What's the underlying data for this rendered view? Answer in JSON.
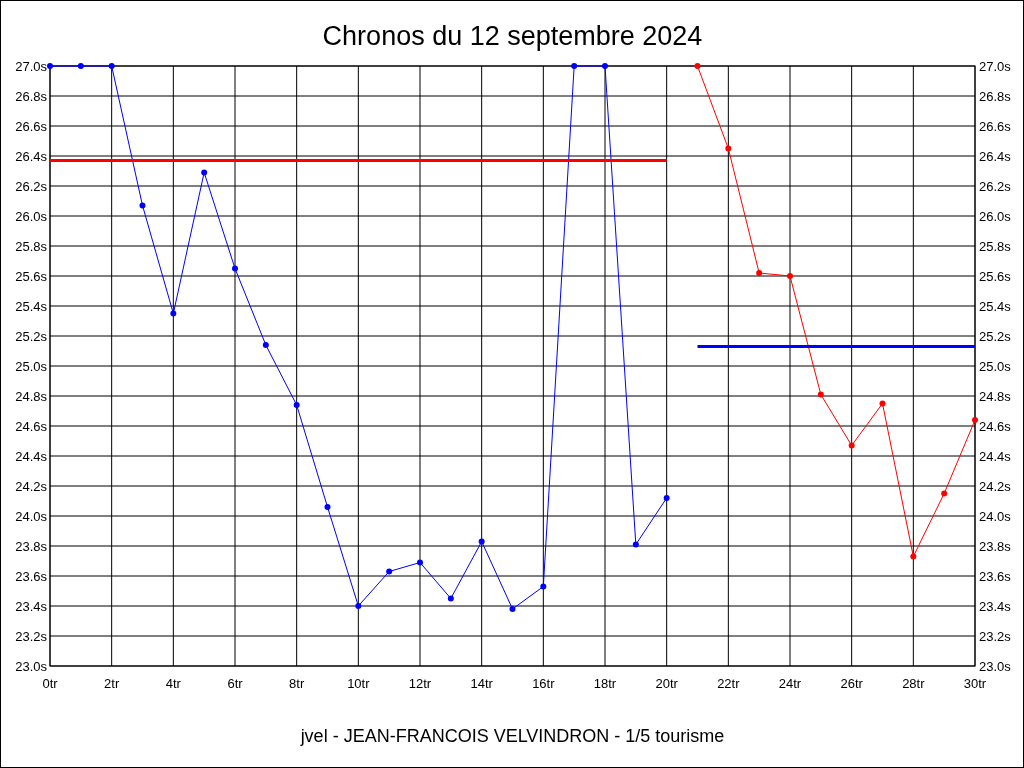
{
  "chart_data": {
    "type": "line",
    "title": "Chronos du 12 septembre 2024",
    "annotations": [
      "jvel - JEAN-FRANCOIS VELVINDRON - 1/5 tourisme"
    ],
    "xlim": [
      0,
      30
    ],
    "xticks": [
      {
        "value": 0,
        "label": "0tr"
      },
      {
        "value": 2,
        "label": "2tr"
      },
      {
        "value": 4,
        "label": "4tr"
      },
      {
        "value": 6,
        "label": "6tr"
      },
      {
        "value": 8,
        "label": "8tr"
      },
      {
        "value": 10,
        "label": "10tr"
      },
      {
        "value": 12,
        "label": "12tr"
      },
      {
        "value": 14,
        "label": "14tr"
      },
      {
        "value": 16,
        "label": "16tr"
      },
      {
        "value": 18,
        "label": "18tr"
      },
      {
        "value": 20,
        "label": "20tr"
      },
      {
        "value": 22,
        "label": "22tr"
      },
      {
        "value": 24,
        "label": "24tr"
      },
      {
        "value": 26,
        "label": "26tr"
      },
      {
        "value": 28,
        "label": "28tr"
      },
      {
        "value": 30,
        "label": "30tr"
      }
    ],
    "ylim": [
      23,
      27
    ],
    "yticks": [
      {
        "value": 23,
        "label": "23.0s"
      },
      {
        "value": 23.2,
        "label": "23.2s"
      },
      {
        "value": 23.4,
        "label": "23.4s"
      },
      {
        "value": 23.6,
        "label": "23.6s"
      },
      {
        "value": 23.8,
        "label": "23.8s"
      },
      {
        "value": 24,
        "label": "24.0s"
      },
      {
        "value": 24.2,
        "label": "24.2s"
      },
      {
        "value": 24.4,
        "label": "24.4s"
      },
      {
        "value": 24.6,
        "label": "24.6s"
      },
      {
        "value": 24.8,
        "label": "24.8s"
      },
      {
        "value": 25,
        "label": "25.0s"
      },
      {
        "value": 25.2,
        "label": "25.2s"
      },
      {
        "value": 25.4,
        "label": "25.4s"
      },
      {
        "value": 25.6,
        "label": "25.6s"
      },
      {
        "value": 25.8,
        "label": "25.8s"
      },
      {
        "value": 26,
        "label": "26.0s"
      },
      {
        "value": 26.2,
        "label": "26.2s"
      },
      {
        "value": 26.4,
        "label": "26.4s"
      },
      {
        "value": 26.6,
        "label": "26.6s"
      },
      {
        "value": 26.8,
        "label": "26.8s"
      },
      {
        "value": 27,
        "label": "27.0s"
      }
    ],
    "y2lim": [
      23,
      27
    ],
    "y2ticks": [
      {
        "value": 23,
        "label": "23.0s"
      },
      {
        "value": 23.2,
        "label": "23.2s"
      },
      {
        "value": 23.4,
        "label": "23.4s"
      },
      {
        "value": 23.6,
        "label": "23.6s"
      },
      {
        "value": 23.8,
        "label": "23.8s"
      },
      {
        "value": 24,
        "label": "24.0s"
      },
      {
        "value": 24.2,
        "label": "24.2s"
      },
      {
        "value": 24.4,
        "label": "24.4s"
      },
      {
        "value": 24.6,
        "label": "24.6s"
      },
      {
        "value": 24.8,
        "label": "24.8s"
      },
      {
        "value": 25,
        "label": "25.0s"
      },
      {
        "value": 25.2,
        "label": "25.2s"
      },
      {
        "value": 25.4,
        "label": "25.4s"
      },
      {
        "value": 25.6,
        "label": "25.6s"
      },
      {
        "value": 25.8,
        "label": "25.8s"
      },
      {
        "value": 26,
        "label": "26.0s"
      },
      {
        "value": 26.2,
        "label": "26.2s"
      },
      {
        "value": 26.4,
        "label": "26.4s"
      },
      {
        "value": 26.6,
        "label": "26.6s"
      },
      {
        "value": 26.8,
        "label": "26.8s"
      },
      {
        "value": 27,
        "label": "27.0s"
      }
    ],
    "grid": true,
    "marker": "circle",
    "line_style": "solid",
    "series": [
      {
        "color": "#0000ff",
        "x": [
          0,
          1,
          2,
          3,
          4,
          5,
          6,
          7,
          8,
          9,
          10,
          11,
          12,
          13,
          14,
          15,
          16,
          17,
          18,
          19,
          20
        ],
        "values": [
          27.0,
          27.0,
          27.0,
          26.07,
          25.35,
          26.29,
          25.65,
          25.14,
          24.74,
          24.06,
          23.4,
          23.63,
          23.69,
          23.45,
          23.83,
          23.38,
          23.53,
          27.0,
          27.0,
          23.81,
          24.12
        ]
      },
      {
        "color": "#ff0000",
        "x": [
          21,
          22,
          23,
          24,
          25,
          26,
          27,
          28,
          29,
          30
        ],
        "values": [
          27.0,
          26.45,
          25.62,
          25.6,
          24.81,
          24.47,
          24.75,
          23.73,
          24.15,
          24.64
        ]
      },
      {
        "color": "#ff0000",
        "marker": "none",
        "x": [
          0,
          20
        ],
        "values": [
          26.37,
          26.37
        ]
      },
      {
        "color": "#0000ff",
        "marker": "none",
        "x": [
          21,
          30
        ],
        "values": [
          25.13,
          25.13
        ]
      }
    ]
  }
}
